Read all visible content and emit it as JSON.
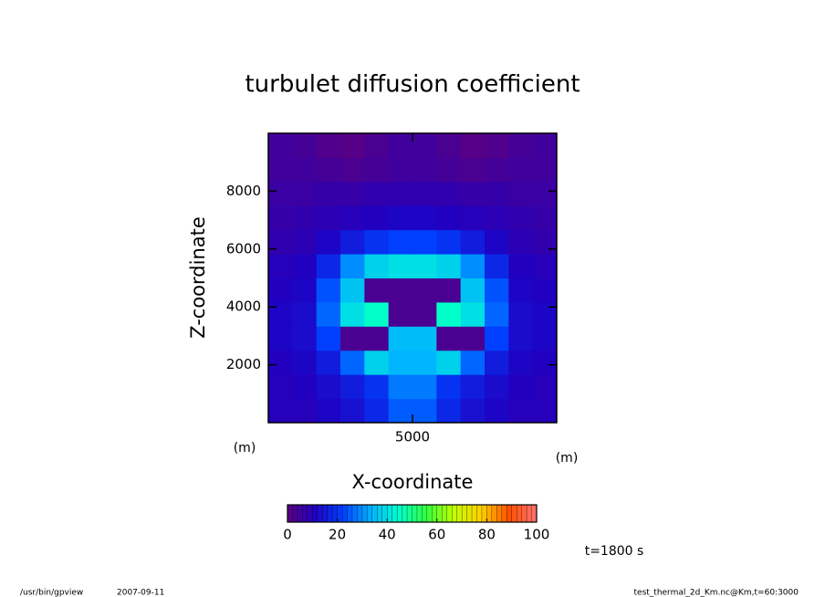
{
  "chart_data": {
    "type": "heatmap",
    "title": "turbulet diffusion coefficient",
    "x_label": "X-coordinate",
    "y_label": "Z-coordinate",
    "x_unit": "(m)",
    "y_unit": "(m)",
    "xlim": [
      0,
      10000
    ],
    "ylim": [
      0,
      10000
    ],
    "xticks": [
      5000
    ],
    "yticks": [
      2000,
      4000,
      6000,
      8000
    ],
    "x": [
      417,
      1250,
      2083,
      2917,
      3750,
      4583,
      5417,
      6250,
      7083,
      7917,
      8750,
      9583
    ],
    "y": [
      417,
      1250,
      2083,
      2917,
      3750,
      4583,
      5417,
      6250,
      7083,
      7917,
      8750,
      9583
    ],
    "values": [
      [
        10,
        10,
        12,
        14,
        18,
        25,
        25,
        18,
        14,
        12,
        10,
        10
      ],
      [
        10,
        11,
        13,
        16,
        20,
        28,
        28,
        20,
        16,
        13,
        11,
        10
      ],
      [
        11,
        12,
        16,
        26,
        38,
        34,
        34,
        38,
        26,
        16,
        12,
        11
      ],
      [
        12,
        13,
        22,
        3,
        3,
        35,
        35,
        3,
        3,
        22,
        13,
        12
      ],
      [
        12,
        13,
        26,
        40,
        45,
        3,
        3,
        45,
        40,
        26,
        13,
        12
      ],
      [
        11,
        12,
        24,
        36,
        3,
        3,
        3,
        3,
        36,
        24,
        12,
        11
      ],
      [
        10,
        11,
        18,
        30,
        38,
        40,
        40,
        38,
        30,
        18,
        11,
        10
      ],
      [
        8,
        9,
        12,
        16,
        20,
        22,
        22,
        20,
        16,
        12,
        9,
        8
      ],
      [
        7,
        8,
        9,
        10,
        11,
        12,
        12,
        11,
        10,
        9,
        8,
        7
      ],
      [
        6,
        6,
        7,
        7,
        8,
        8,
        8,
        8,
        7,
        7,
        6,
        6
      ],
      [
        5,
        5,
        4,
        3,
        4,
        5,
        5,
        4,
        3,
        4,
        5,
        5
      ],
      [
        5,
        4,
        2,
        1,
        3,
        5,
        5,
        3,
        1,
        2,
        4,
        5
      ]
    ],
    "colors": [
      "#5a0080",
      "#2000c0",
      "#0040ff",
      "#00b0ff",
      "#00ffd0",
      "#30ff40",
      "#c0ff00",
      "#ffd000",
      "#ff5000",
      "#ff7070"
    ],
    "clim": [
      0,
      100
    ],
    "colorbar_ticks": [
      0,
      20,
      40,
      60,
      80,
      100
    ],
    "time_label": "t=1800 s",
    "footer_left": [
      "/usr/bin/gpview",
      "2007-09-11"
    ],
    "footer_right": "test_thermal_2d_Km.nc@Km,t=60:3000"
  }
}
